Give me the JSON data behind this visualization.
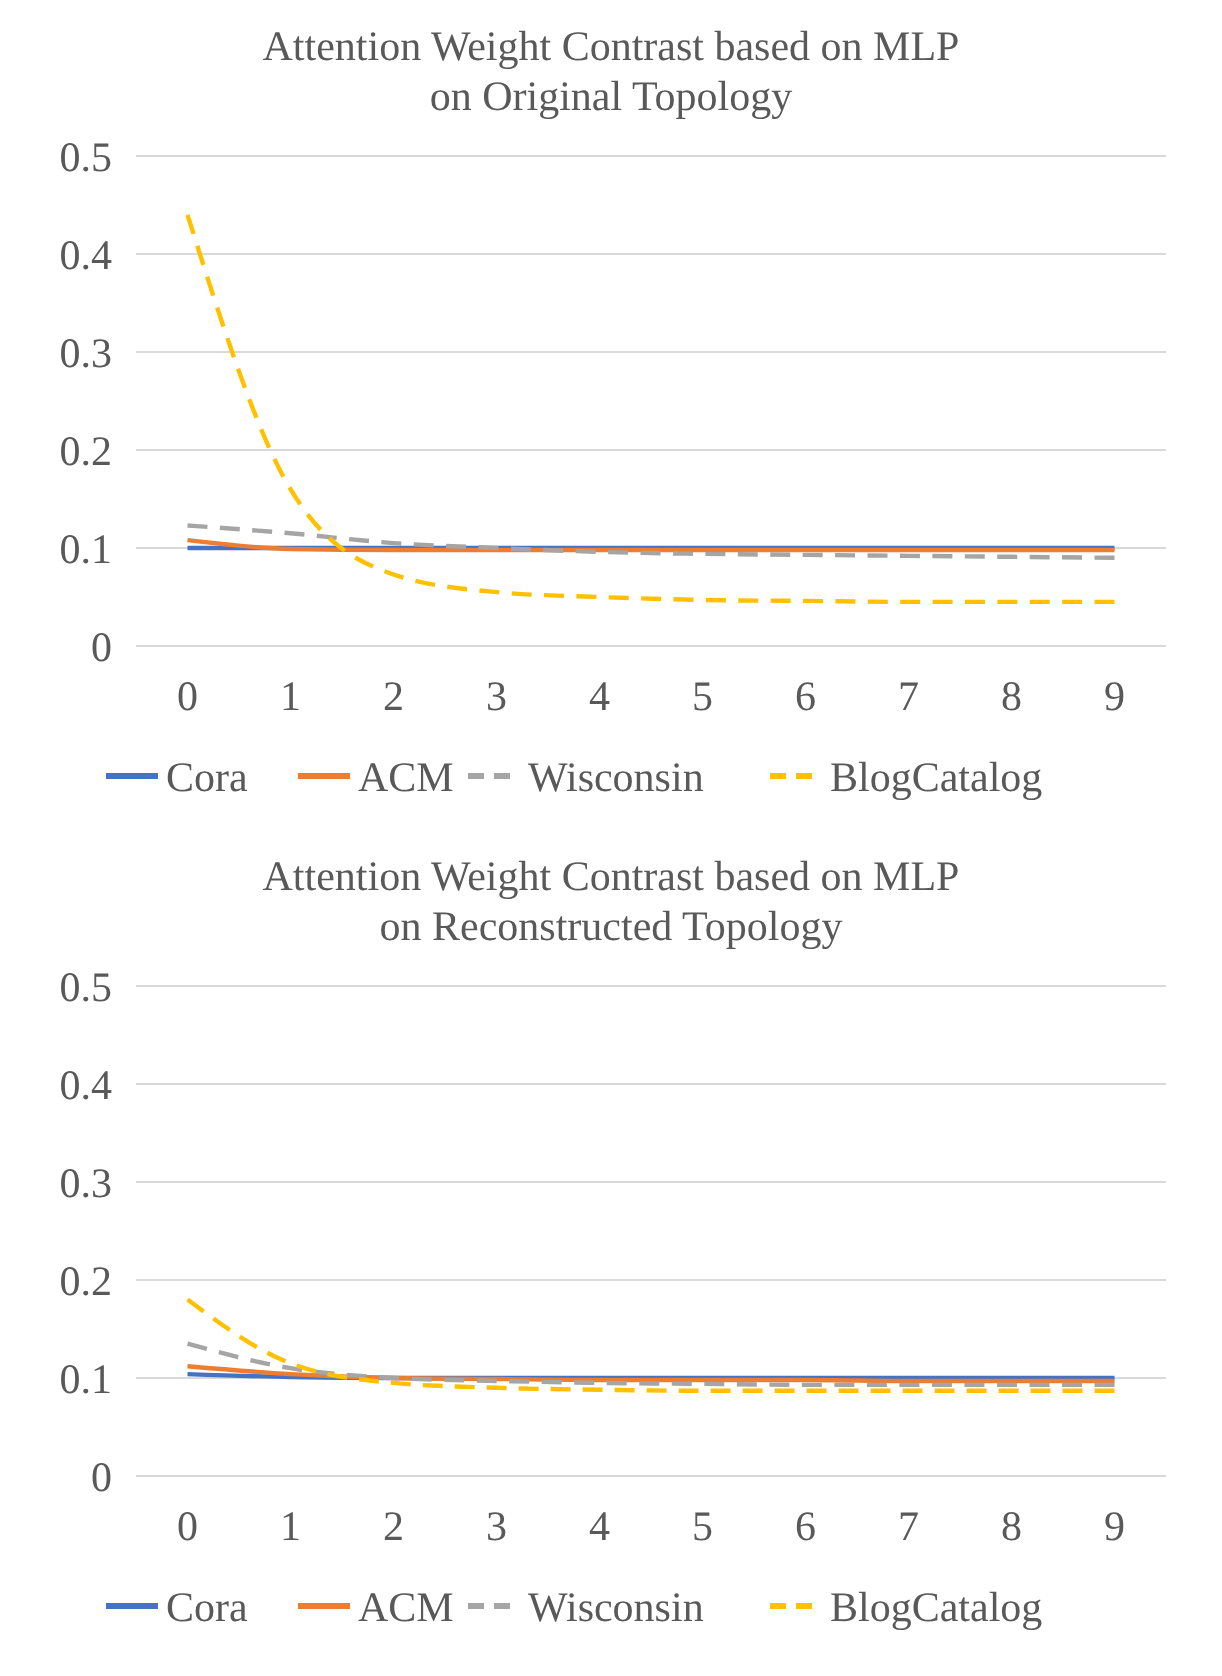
{
  "chart_data": [
    {
      "type": "line",
      "title": "Attention Weight Contrast based on MLP\non Original Topology",
      "categories": [
        "0",
        "1",
        "2",
        "3",
        "4",
        "5",
        "6",
        "7",
        "8",
        "9"
      ],
      "ylim": [
        0,
        0.5
      ],
      "yticks": [
        0,
        0.1,
        0.2,
        0.3,
        0.4,
        0.5
      ],
      "grid": "y",
      "legend": "bottom",
      "series": [
        {
          "name": "Cora",
          "color": "#4472c4",
          "line_style": "solid",
          "values": [
            0.1,
            0.1,
            0.1,
            0.1,
            0.1,
            0.1,
            0.1,
            0.1,
            0.1,
            0.1
          ]
        },
        {
          "name": "ACM",
          "color": "#ed7d31",
          "line_style": "solid",
          "values": [
            0.108,
            0.099,
            0.098,
            0.098,
            0.098,
            0.098,
            0.098,
            0.098,
            0.098,
            0.098
          ]
        },
        {
          "name": "Wisconsin",
          "color": "#a5a5a5",
          "line_style": "dashed",
          "values": [
            0.123,
            0.115,
            0.105,
            0.1,
            0.096,
            0.094,
            0.093,
            0.092,
            0.091,
            0.09
          ]
        },
        {
          "name": "BlogCatalog",
          "color": "#ffc000",
          "line_style": "dashed",
          "values": [
            0.44,
            0.16,
            0.073,
            0.055,
            0.05,
            0.047,
            0.046,
            0.045,
            0.045,
            0.045
          ]
        }
      ]
    },
    {
      "type": "line",
      "title": "Attention Weight Contrast based on MLP\non Reconstructed Topology",
      "categories": [
        "0",
        "1",
        "2",
        "3",
        "4",
        "5",
        "6",
        "7",
        "8",
        "9"
      ],
      "ylim": [
        0,
        0.5
      ],
      "yticks": [
        0,
        0.1,
        0.2,
        0.3,
        0.4,
        0.5
      ],
      "grid": "y",
      "legend": "bottom",
      "series": [
        {
          "name": "Cora",
          "color": "#4472c4",
          "line_style": "solid",
          "values": [
            0.104,
            0.101,
            0.1,
            0.1,
            0.1,
            0.1,
            0.1,
            0.1,
            0.1,
            0.1
          ]
        },
        {
          "name": "ACM",
          "color": "#ed7d31",
          "line_style": "solid",
          "values": [
            0.112,
            0.104,
            0.1,
            0.099,
            0.098,
            0.098,
            0.098,
            0.097,
            0.097,
            0.097
          ]
        },
        {
          "name": "Wisconsin",
          "color": "#a5a5a5",
          "line_style": "dashed",
          "values": [
            0.135,
            0.11,
            0.1,
            0.097,
            0.095,
            0.094,
            0.093,
            0.093,
            0.093,
            0.093
          ]
        },
        {
          "name": "BlogCatalog",
          "color": "#ffc000",
          "line_style": "dashed",
          "values": [
            0.18,
            0.115,
            0.095,
            0.09,
            0.088,
            0.087,
            0.087,
            0.087,
            0.087,
            0.087
          ]
        }
      ]
    }
  ]
}
